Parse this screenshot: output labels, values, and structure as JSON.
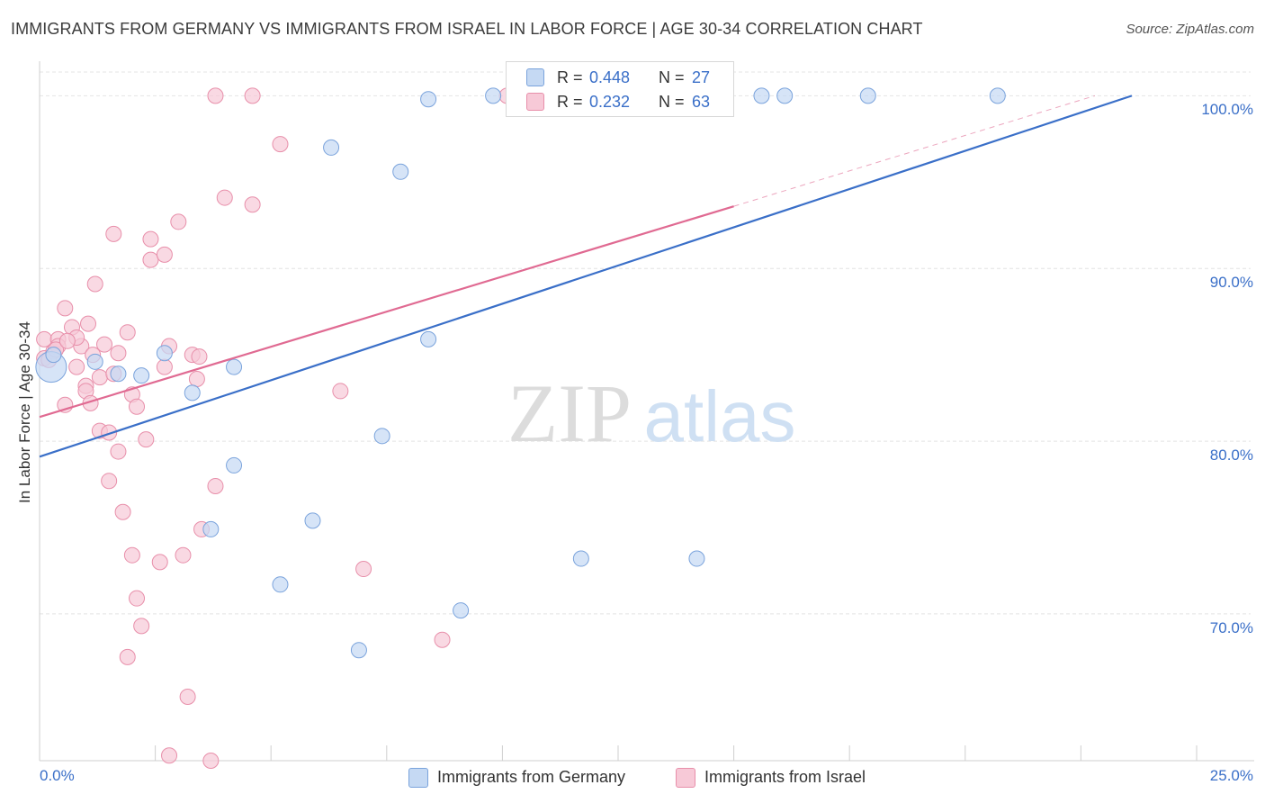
{
  "title": "IMMIGRANTS FROM GERMANY VS IMMIGRANTS FROM ISRAEL IN LABOR FORCE | AGE 30-34 CORRELATION CHART",
  "source": "Source: ZipAtlas.com",
  "watermark": {
    "zip": "ZIP",
    "atlas": "atlas"
  },
  "legend": {
    "r_label": "R =",
    "n_label": "N =",
    "germany": {
      "r": "0.448",
      "n": "27"
    },
    "israel": {
      "r": "0.232",
      "n": "63"
    }
  },
  "colors": {
    "germany_fill": "#c5d9f3",
    "germany_stroke": "#7aa3dc",
    "germany_line": "#3a6fc8",
    "israel_fill": "#f7c9d7",
    "israel_stroke": "#e88faa",
    "israel_line": "#e06a92",
    "tick_text": "#3a6fc8"
  },
  "chart_data": {
    "type": "scatter",
    "xlabel": "",
    "ylabel": "In Labor Force | Age 30-34",
    "xlim": [
      0,
      25
    ],
    "ylim": [
      61.5,
      102
    ],
    "x_tick_labels": [
      "0.0%",
      "25.0%"
    ],
    "y_ticks": [
      70,
      80,
      90,
      100
    ],
    "y_tick_labels": [
      "70.0%",
      "80.0%",
      "90.0%",
      "100.0%"
    ],
    "grid": true,
    "legend_position": "top-center",
    "series": [
      {
        "name": "Immigrants from Germany",
        "key": "germany",
        "points": [
          [
            0.25,
            84.3
          ],
          [
            1.2,
            84.6
          ],
          [
            1.7,
            83.9
          ],
          [
            2.2,
            83.8
          ],
          [
            2.7,
            85.1
          ],
          [
            3.3,
            82.8
          ],
          [
            4.2,
            84.3
          ],
          [
            4.2,
            78.6
          ],
          [
            5.2,
            71.7
          ],
          [
            5.9,
            75.4
          ],
          [
            3.7,
            74.9
          ],
          [
            6.3,
            97.0
          ],
          [
            6.9,
            67.9
          ],
          [
            7.4,
            80.3
          ],
          [
            7.8,
            95.6
          ],
          [
            8.4,
            99.8
          ],
          [
            8.4,
            85.9
          ],
          [
            9.1,
            70.2
          ],
          [
            9.8,
            100.0
          ],
          [
            10.3,
            100.0
          ],
          [
            11.7,
            73.2
          ],
          [
            14.2,
            73.2
          ],
          [
            15.6,
            100.0
          ],
          [
            16.1,
            100.0
          ],
          [
            17.9,
            100.0
          ],
          [
            20.7,
            100.0
          ],
          [
            0.3,
            85.0
          ]
        ],
        "sizes": [
          1,
          0,
          0,
          0,
          0,
          0,
          0,
          0,
          0,
          0,
          0,
          0,
          0,
          0,
          0,
          0,
          0,
          0,
          0,
          0,
          0,
          0,
          0,
          0,
          0,
          0,
          0
        ],
        "trend": {
          "x": [
            0,
            23.6
          ],
          "y": [
            79.1,
            100.0
          ]
        }
      },
      {
        "name": "Immigrants from Israel",
        "key": "israel",
        "points": [
          [
            0.1,
            85.9
          ],
          [
            0.1,
            84.8
          ],
          [
            0.3,
            85.2
          ],
          [
            0.4,
            85.9
          ],
          [
            0.4,
            85.5
          ],
          [
            0.55,
            82.1
          ],
          [
            0.55,
            87.7
          ],
          [
            0.7,
            86.6
          ],
          [
            0.9,
            85.5
          ],
          [
            0.8,
            84.3
          ],
          [
            0.8,
            86.0
          ],
          [
            1.0,
            83.2
          ],
          [
            1.0,
            82.9
          ],
          [
            1.05,
            86.8
          ],
          [
            1.1,
            82.2
          ],
          [
            1.2,
            89.1
          ],
          [
            1.3,
            80.6
          ],
          [
            1.3,
            83.7
          ],
          [
            1.4,
            85.6
          ],
          [
            1.5,
            80.5
          ],
          [
            1.5,
            77.7
          ],
          [
            1.6,
            83.9
          ],
          [
            1.6,
            92.0
          ],
          [
            1.7,
            85.1
          ],
          [
            1.7,
            79.4
          ],
          [
            1.8,
            75.9
          ],
          [
            1.9,
            86.3
          ],
          [
            1.9,
            67.5
          ],
          [
            2.0,
            82.7
          ],
          [
            2.0,
            73.4
          ],
          [
            2.1,
            70.9
          ],
          [
            2.1,
            82.0
          ],
          [
            2.2,
            69.3
          ],
          [
            2.3,
            80.1
          ],
          [
            2.4,
            90.5
          ],
          [
            2.4,
            91.7
          ],
          [
            2.6,
            73.0
          ],
          [
            2.7,
            90.8
          ],
          [
            2.7,
            84.3
          ],
          [
            2.8,
            85.5
          ],
          [
            2.8,
            61.8
          ],
          [
            3.0,
            92.7
          ],
          [
            3.1,
            73.4
          ],
          [
            3.2,
            65.2
          ],
          [
            3.3,
            85.0
          ],
          [
            3.4,
            83.6
          ],
          [
            3.5,
            74.9
          ],
          [
            3.7,
            61.5
          ],
          [
            3.8,
            77.4
          ],
          [
            3.8,
            100.0
          ],
          [
            4.0,
            94.1
          ],
          [
            4.6,
            100.0
          ],
          [
            4.6,
            93.7
          ],
          [
            5.2,
            97.2
          ],
          [
            6.5,
            82.9
          ],
          [
            7.0,
            72.6
          ],
          [
            8.7,
            68.5
          ],
          [
            10.1,
            100.0
          ],
          [
            0.2,
            84.7
          ],
          [
            0.35,
            85.3
          ],
          [
            0.6,
            85.8
          ],
          [
            1.15,
            85.0
          ],
          [
            3.45,
            84.9
          ]
        ],
        "trend": {
          "x": [
            0,
            15
          ],
          "y": [
            81.4,
            93.6
          ]
        },
        "trend_extension": {
          "x": [
            15,
            22.8
          ],
          "y": [
            93.6,
            100.0
          ]
        }
      }
    ]
  }
}
